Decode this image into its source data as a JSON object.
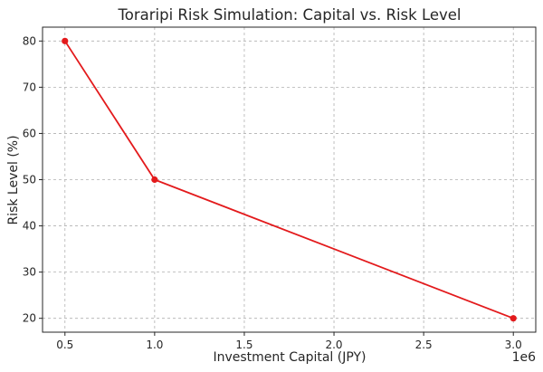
{
  "chart_data": {
    "type": "line",
    "title": "Toraripi Risk Simulation: Capital vs. Risk Level",
    "xlabel": "Investment Capital (JPY)",
    "ylabel": "Risk Level (%)",
    "x_offset_label": "1e6",
    "x_scale": 1000000,
    "x": [
      500000,
      1000000,
      3000000
    ],
    "series": [
      {
        "values": [
          80,
          50,
          20
        ],
        "color": "#e31a1c",
        "marker": "circle"
      }
    ],
    "xlim": [
      375000,
      3125000
    ],
    "ylim": [
      17,
      83
    ],
    "x_ticks": [
      500000,
      1000000,
      1500000,
      2000000,
      2500000,
      3000000
    ],
    "x_tick_labels": [
      "0.5",
      "1.0",
      "1.5",
      "2.0",
      "2.5",
      "3.0"
    ],
    "y_ticks": [
      20,
      30,
      40,
      50,
      60,
      70,
      80
    ],
    "y_tick_labels": [
      "20",
      "30",
      "40",
      "50",
      "60",
      "70",
      "80"
    ],
    "grid": true,
    "legend": "none"
  }
}
